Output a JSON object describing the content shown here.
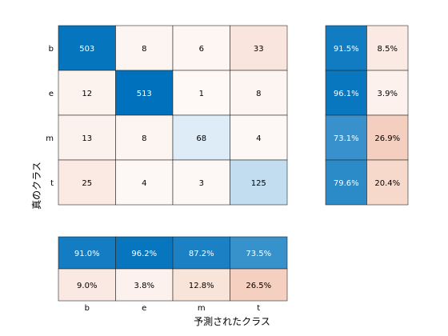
{
  "chart_data": {
    "type": "heatmap",
    "title": "",
    "xlabel": "予測されたクラス",
    "ylabel": "真のクラス",
    "classes": [
      "b",
      "e",
      "m",
      "t"
    ],
    "matrix": [
      [
        503,
        8,
        6,
        33
      ],
      [
        12,
        513,
        1,
        8
      ],
      [
        13,
        8,
        68,
        4
      ],
      [
        25,
        4,
        3,
        125
      ]
    ],
    "row_summary": [
      [
        "91.5%",
        "8.5%"
      ],
      [
        "96.1%",
        "3.9%"
      ],
      [
        "73.1%",
        "26.9%"
      ],
      [
        "79.6%",
        "20.4%"
      ]
    ],
    "row_summary_values": [
      [
        0.915,
        0.085
      ],
      [
        0.961,
        0.039
      ],
      [
        0.731,
        0.269
      ],
      [
        0.796,
        0.204
      ]
    ],
    "column_summary": [
      [
        "91.0%",
        "96.2%",
        "87.2%",
        "73.5%"
      ],
      [
        "9.0%",
        "3.8%",
        "12.8%",
        "26.5%"
      ]
    ],
    "column_summary_values": [
      [
        0.91,
        0.962,
        0.872,
        0.735
      ],
      [
        0.09,
        0.038,
        0.128,
        0.265
      ]
    ],
    "colors": {
      "correct": "#0072bd",
      "incorrect": "#d95319",
      "white": "#ffffff",
      "grid": "#262626",
      "light_text": "#ffffff",
      "dark_text": "#000000"
    }
  }
}
